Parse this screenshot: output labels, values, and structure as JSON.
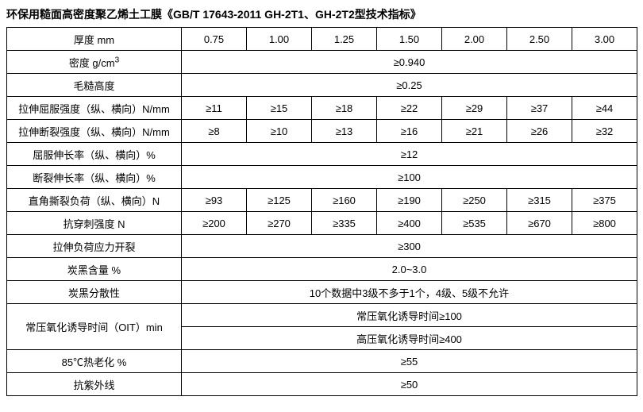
{
  "title": "环保用糙面高密度聚乙烯土工膜《GB/T 17643-2011 GH-2T1、GH-2T2型技术指标》",
  "table": {
    "label_col_width": 220,
    "val_col_width": 82,
    "rows": [
      {
        "label": "厚度 mm",
        "cells": [
          "0.75",
          "1.00",
          "1.25",
          "1.50",
          "2.00",
          "2.50",
          "3.00"
        ]
      },
      {
        "label_html": "密度 g/cm<sup>3</sup>",
        "span": "≥0.940"
      },
      {
        "label": "毛糙高度",
        "span": "≥0.25"
      },
      {
        "label": "拉伸屈服强度（纵、横向）N/mm",
        "cells": [
          "≥11",
          "≥15",
          "≥18",
          "≥22",
          "≥29",
          "≥37",
          "≥44"
        ]
      },
      {
        "label": "拉伸断裂强度（纵、横向）N/mm",
        "cells": [
          "≥8",
          "≥10",
          "≥13",
          "≥16",
          "≥21",
          "≥26",
          "≥32"
        ]
      },
      {
        "label": "屈服伸长率（纵、横向）%",
        "span": "≥12"
      },
      {
        "label": "断裂伸长率（纵、横向）%",
        "span": "≥100"
      },
      {
        "label": "直角撕裂负荷（纵、横向）N",
        "cells": [
          "≥93",
          "≥125",
          "≥160",
          "≥190",
          "≥250",
          "≥315",
          "≥375"
        ]
      },
      {
        "label": "抗穿刺强度 N",
        "cells": [
          "≥200",
          "≥270",
          "≥335",
          "≥400",
          "≥535",
          "≥670",
          "≥800"
        ]
      },
      {
        "label": "拉伸负荷应力开裂",
        "span": "≥300"
      },
      {
        "label": "炭黑含量 %",
        "span": "2.0~3.0"
      },
      {
        "label": "炭黑分散性",
        "span": "10个数据中3级不多于1个，4级、5级不允许"
      },
      {
        "label": "常压氧化诱导时间（OIT）min",
        "rowspan": 2,
        "span": "常压氧化诱导时间≥100"
      },
      {
        "suppress_label": true,
        "span": "高压氧化诱导时间≥400"
      },
      {
        "label": "85℃热老化 %",
        "span": "≥55"
      },
      {
        "label": "抗紫外线",
        "span": "≥50"
      }
    ]
  }
}
